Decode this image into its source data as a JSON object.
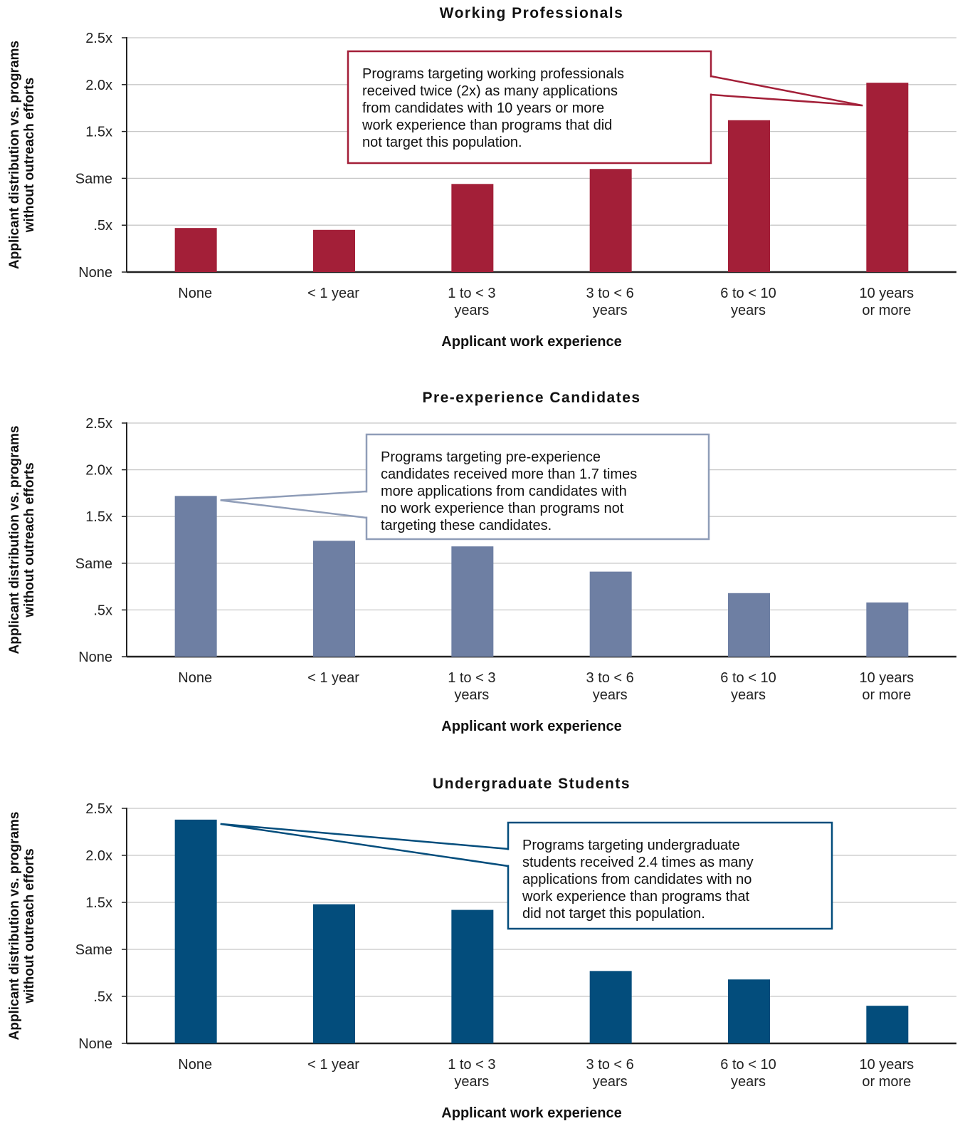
{
  "chart_data": [
    {
      "type": "bar",
      "title": "Working Professionals",
      "xlabel": "Applicant work experience",
      "ylabel_lines": [
        "Applicant distribution vs. programs",
        "without outreach efforts"
      ],
      "categories": [
        [
          "None"
        ],
        [
          "< 1 year"
        ],
        [
          "1 to < 3",
          "years"
        ],
        [
          "3 to < 6",
          "years"
        ],
        [
          "6 to < 10",
          "years"
        ],
        [
          "10 years",
          "or more"
        ]
      ],
      "values": [
        0.47,
        0.45,
        0.94,
        1.1,
        1.62,
        2.02
      ],
      "ylim": [
        0,
        2.5
      ],
      "yticks": [
        {
          "v": 0,
          "label": "None"
        },
        {
          "v": 0.5,
          "label": ".5x"
        },
        {
          "v": 1.0,
          "label": "Same"
        },
        {
          "v": 1.5,
          "label": "1.5x"
        },
        {
          "v": 2.0,
          "label": "2.0x"
        },
        {
          "v": 2.5,
          "label": "2.5x"
        }
      ],
      "grid": true,
      "color": "#a31f38",
      "annotation": {
        "lines": [
          "Programs targeting working professionals",
          "received twice (2x) as many applications",
          "from candidates with 10 years or more",
          "work experience than programs that did",
          "not target this population."
        ],
        "target_category": 5,
        "border_color": "#a31f38"
      }
    },
    {
      "type": "bar",
      "title": "Pre-experience Candidates",
      "xlabel": "Applicant work experience",
      "ylabel_lines": [
        "Applicant distribution vs. programs",
        "without outreach efforts"
      ],
      "categories": [
        [
          "None"
        ],
        [
          "< 1 year"
        ],
        [
          "1 to < 3",
          "years"
        ],
        [
          "3 to < 6",
          "years"
        ],
        [
          "6 to < 10",
          "years"
        ],
        [
          "10 years",
          "or more"
        ]
      ],
      "values": [
        1.72,
        1.24,
        1.18,
        0.91,
        0.68,
        0.58
      ],
      "ylim": [
        0,
        2.5
      ],
      "yticks": [
        {
          "v": 0,
          "label": "None"
        },
        {
          "v": 0.5,
          "label": ".5x"
        },
        {
          "v": 1.0,
          "label": "Same"
        },
        {
          "v": 1.5,
          "label": "1.5x"
        },
        {
          "v": 2.0,
          "label": "2.0x"
        },
        {
          "v": 2.5,
          "label": "2.5x"
        }
      ],
      "grid": true,
      "color": "#6e7fa3",
      "annotation": {
        "lines": [
          "Programs targeting pre-experience",
          "candidates received more than 1.7 times",
          "more applications from candidates with",
          "no work experience than programs not",
          "targeting these candidates."
        ],
        "target_category": 0,
        "border_color": "#8f9db8"
      }
    },
    {
      "type": "bar",
      "title": "Undergraduate Students",
      "xlabel": "Applicant work experience",
      "ylabel_lines": [
        "Applicant distribution vs. programs",
        "without outreach efforts"
      ],
      "categories": [
        [
          "None"
        ],
        [
          "< 1 year"
        ],
        [
          "1 to < 3",
          "years"
        ],
        [
          "3 to < 6",
          "years"
        ],
        [
          "6 to < 10",
          "years"
        ],
        [
          "10 years",
          "or more"
        ]
      ],
      "values": [
        2.38,
        1.48,
        1.42,
        0.77,
        0.68,
        0.4
      ],
      "ylim": [
        0,
        2.5
      ],
      "yticks": [
        {
          "v": 0,
          "label": "None"
        },
        {
          "v": 0.5,
          "label": ".5x"
        },
        {
          "v": 1.0,
          "label": "Same"
        },
        {
          "v": 1.5,
          "label": "1.5x"
        },
        {
          "v": 2.0,
          "label": "2.0x"
        },
        {
          "v": 2.5,
          "label": "2.5x"
        }
      ],
      "grid": true,
      "color": "#034d7c",
      "annotation": {
        "lines": [
          "Programs targeting undergraduate",
          "students received 2.4 times as many",
          "applications from candidates with no",
          "work experience than programs that",
          "did not target this population."
        ],
        "target_category": 0,
        "border_color": "#034d7c"
      }
    }
  ]
}
